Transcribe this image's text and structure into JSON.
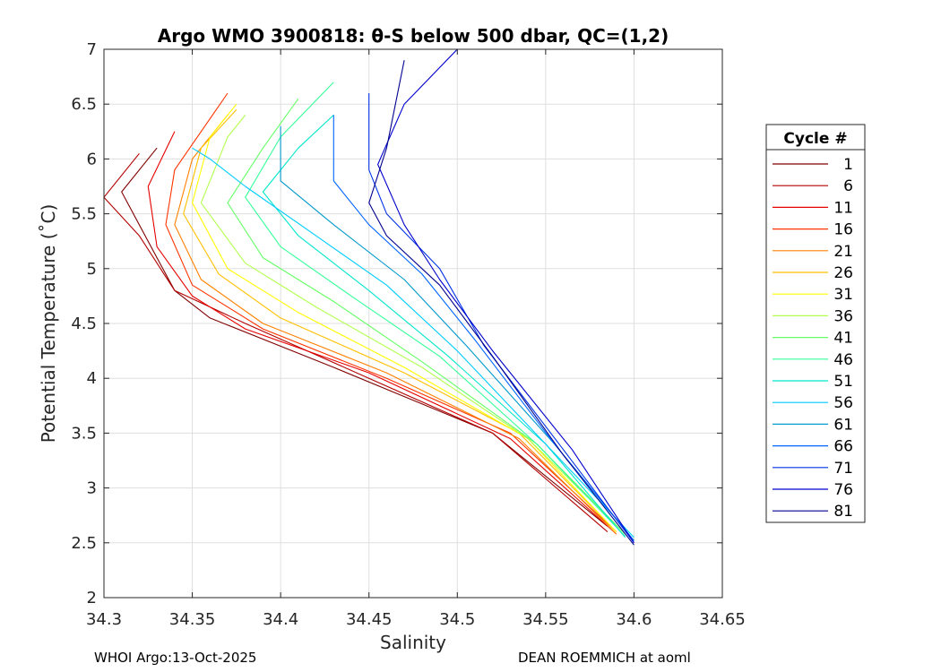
{
  "chart_data": {
    "type": "line",
    "title": "Argo WMO 3900818: θ-S below 500 dbar,  QC=(1,2)",
    "xlabel": "Salinity",
    "ylabel": "Potential Temperature (˚C)",
    "xlim": [
      34.3,
      34.65
    ],
    "ylim": [
      2,
      7
    ],
    "xticks": [
      "34.3",
      "34.35",
      "34.4",
      "34.45",
      "34.5",
      "34.55",
      "34.6",
      "34.65"
    ],
    "yticks": [
      "2",
      "2.5",
      "3",
      "3.5",
      "4",
      "4.5",
      "5",
      "5.5",
      "6",
      "6.5",
      "7"
    ],
    "grid": true,
    "legend": {
      "title": "Cycle #",
      "position": "right-outside",
      "entries": [
        {
          "label": "1",
          "color": "#800000"
        },
        {
          "label": "6",
          "color": "#b30000"
        },
        {
          "label": "11",
          "color": "#e60000"
        },
        {
          "label": "16",
          "color": "#ff3300"
        },
        {
          "label": "21",
          "color": "#ff8000"
        },
        {
          "label": "26",
          "color": "#ffbf00"
        },
        {
          "label": "31",
          "color": "#ffff00"
        },
        {
          "label": "36",
          "color": "#b3ff4d"
        },
        {
          "label": "41",
          "color": "#66ff66"
        },
        {
          "label": "46",
          "color": "#33ff99"
        },
        {
          "label": "51",
          "color": "#00e6cc"
        },
        {
          "label": "56",
          "color": "#00ccff"
        },
        {
          "label": "61",
          "color": "#0099cc"
        },
        {
          "label": "66",
          "color": "#0066ff"
        },
        {
          "label": "71",
          "color": "#0033e6"
        },
        {
          "label": "76",
          "color": "#0000cc"
        },
        {
          "label": "81",
          "color": "#00008f"
        }
      ]
    },
    "series": [
      {
        "name": "1",
        "color": "#800000",
        "points": [
          [
            34.585,
            2.65
          ],
          [
            34.52,
            3.5
          ],
          [
            34.43,
            4.1
          ],
          [
            34.36,
            4.55
          ],
          [
            34.34,
            4.8
          ],
          [
            34.33,
            5.1
          ],
          [
            34.31,
            5.7
          ],
          [
            34.33,
            6.1
          ]
        ]
      },
      {
        "name": "6",
        "color": "#b30000",
        "points": [
          [
            34.585,
            2.6
          ],
          [
            34.52,
            3.5
          ],
          [
            34.45,
            4.0
          ],
          [
            34.38,
            4.5
          ],
          [
            34.34,
            4.8
          ],
          [
            34.32,
            5.3
          ],
          [
            34.3,
            5.65
          ],
          [
            34.32,
            6.05
          ]
        ]
      },
      {
        "name": "11",
        "color": "#e60000",
        "points": [
          [
            34.59,
            2.58
          ],
          [
            34.53,
            3.45
          ],
          [
            34.45,
            4.05
          ],
          [
            34.38,
            4.45
          ],
          [
            34.35,
            4.75
          ],
          [
            34.33,
            5.2
          ],
          [
            34.325,
            5.75
          ],
          [
            34.34,
            6.25
          ]
        ]
      },
      {
        "name": "16",
        "color": "#ff3300",
        "points": [
          [
            34.59,
            2.6
          ],
          [
            34.53,
            3.5
          ],
          [
            34.46,
            4.0
          ],
          [
            34.39,
            4.45
          ],
          [
            34.35,
            4.85
          ],
          [
            34.335,
            5.4
          ],
          [
            34.34,
            5.9
          ],
          [
            34.37,
            6.6
          ]
        ]
      },
      {
        "name": "21",
        "color": "#ff8000",
        "points": [
          [
            34.59,
            2.58
          ],
          [
            34.535,
            3.45
          ],
          [
            34.46,
            4.05
          ],
          [
            34.39,
            4.5
          ],
          [
            34.355,
            4.9
          ],
          [
            34.34,
            5.4
          ],
          [
            34.35,
            6.0
          ],
          [
            34.37,
            6.4
          ]
        ]
      },
      {
        "name": "26",
        "color": "#ffbf00",
        "points": [
          [
            34.59,
            2.6
          ],
          [
            34.535,
            3.5
          ],
          [
            34.47,
            4.05
          ],
          [
            34.4,
            4.55
          ],
          [
            34.365,
            4.95
          ],
          [
            34.345,
            5.5
          ],
          [
            34.355,
            6.1
          ],
          [
            34.375,
            6.45
          ]
        ]
      },
      {
        "name": "31",
        "color": "#ffff00",
        "points": [
          [
            34.59,
            2.6
          ],
          [
            34.54,
            3.45
          ],
          [
            34.47,
            4.1
          ],
          [
            34.41,
            4.6
          ],
          [
            34.37,
            5.0
          ],
          [
            34.35,
            5.6
          ],
          [
            34.36,
            6.2
          ],
          [
            34.375,
            6.5
          ]
        ]
      },
      {
        "name": "36",
        "color": "#b3ff4d",
        "points": [
          [
            34.595,
            2.58
          ],
          [
            34.54,
            3.45
          ],
          [
            34.48,
            4.1
          ],
          [
            34.42,
            4.65
          ],
          [
            34.38,
            5.05
          ],
          [
            34.355,
            5.6
          ],
          [
            34.37,
            6.2
          ],
          [
            34.38,
            6.4
          ]
        ]
      },
      {
        "name": "41",
        "color": "#66ff66",
        "points": [
          [
            34.595,
            2.58
          ],
          [
            34.545,
            3.4
          ],
          [
            34.48,
            4.15
          ],
          [
            34.43,
            4.7
          ],
          [
            34.39,
            5.1
          ],
          [
            34.37,
            5.6
          ],
          [
            34.39,
            6.1
          ],
          [
            34.41,
            6.55
          ]
        ]
      },
      {
        "name": "46",
        "color": "#33ff99",
        "points": [
          [
            34.595,
            2.56
          ],
          [
            34.545,
            3.4
          ],
          [
            34.49,
            4.2
          ],
          [
            34.44,
            4.75
          ],
          [
            34.4,
            5.2
          ],
          [
            34.38,
            5.65
          ],
          [
            34.4,
            6.2
          ],
          [
            34.43,
            6.7
          ]
        ]
      },
      {
        "name": "51",
        "color": "#00e6cc",
        "points": [
          [
            34.595,
            2.55
          ],
          [
            34.55,
            3.4
          ],
          [
            34.495,
            4.2
          ],
          [
            34.45,
            4.8
          ],
          [
            34.41,
            5.3
          ],
          [
            34.39,
            5.7
          ],
          [
            34.41,
            6.1
          ],
          [
            34.43,
            6.4
          ]
        ]
      },
      {
        "name": "56",
        "color": "#00ccff",
        "points": [
          [
            34.6,
            2.55
          ],
          [
            34.55,
            3.4
          ],
          [
            34.5,
            4.25
          ],
          [
            34.46,
            4.85
          ],
          [
            34.42,
            5.3
          ],
          [
            34.38,
            5.75
          ],
          [
            34.36,
            6.0
          ],
          [
            34.35,
            6.1
          ]
        ]
      },
      {
        "name": "61",
        "color": "#0099cc",
        "points": [
          [
            34.6,
            2.52
          ],
          [
            34.555,
            3.4
          ],
          [
            34.505,
            4.3
          ],
          [
            34.47,
            4.9
          ],
          [
            34.43,
            5.4
          ],
          [
            34.4,
            5.8
          ],
          [
            34.4,
            6.3
          ]
        ]
      },
      {
        "name": "66",
        "color": "#0066ff",
        "points": [
          [
            34.6,
            2.52
          ],
          [
            34.555,
            3.4
          ],
          [
            34.51,
            4.35
          ],
          [
            34.48,
            4.95
          ],
          [
            34.45,
            5.4
          ],
          [
            34.43,
            5.8
          ],
          [
            34.43,
            6.4
          ]
        ]
      },
      {
        "name": "71",
        "color": "#0033e6",
        "points": [
          [
            34.6,
            2.5
          ],
          [
            34.56,
            3.35
          ],
          [
            34.515,
            4.3
          ],
          [
            34.49,
            5.0
          ],
          [
            34.46,
            5.5
          ],
          [
            34.45,
            5.9
          ],
          [
            34.45,
            6.6
          ]
        ]
      },
      {
        "name": "76",
        "color": "#0000cc",
        "points": [
          [
            34.6,
            2.5
          ],
          [
            34.565,
            3.35
          ],
          [
            34.52,
            4.25
          ],
          [
            34.49,
            4.9
          ],
          [
            34.47,
            5.4
          ],
          [
            34.455,
            5.95
          ],
          [
            34.47,
            6.5
          ],
          [
            34.5,
            7.0
          ]
        ]
      },
      {
        "name": "81",
        "color": "#00008f",
        "points": [
          [
            34.6,
            2.48
          ],
          [
            34.56,
            3.3
          ],
          [
            34.52,
            4.2
          ],
          [
            34.49,
            4.85
          ],
          [
            34.46,
            5.3
          ],
          [
            34.45,
            5.6
          ],
          [
            34.46,
            6.1
          ],
          [
            34.47,
            6.9
          ]
        ]
      }
    ]
  },
  "footer": {
    "left": "WHOI Argo:13-Oct-2025",
    "right": "DEAN ROEMMICH at aoml"
  }
}
